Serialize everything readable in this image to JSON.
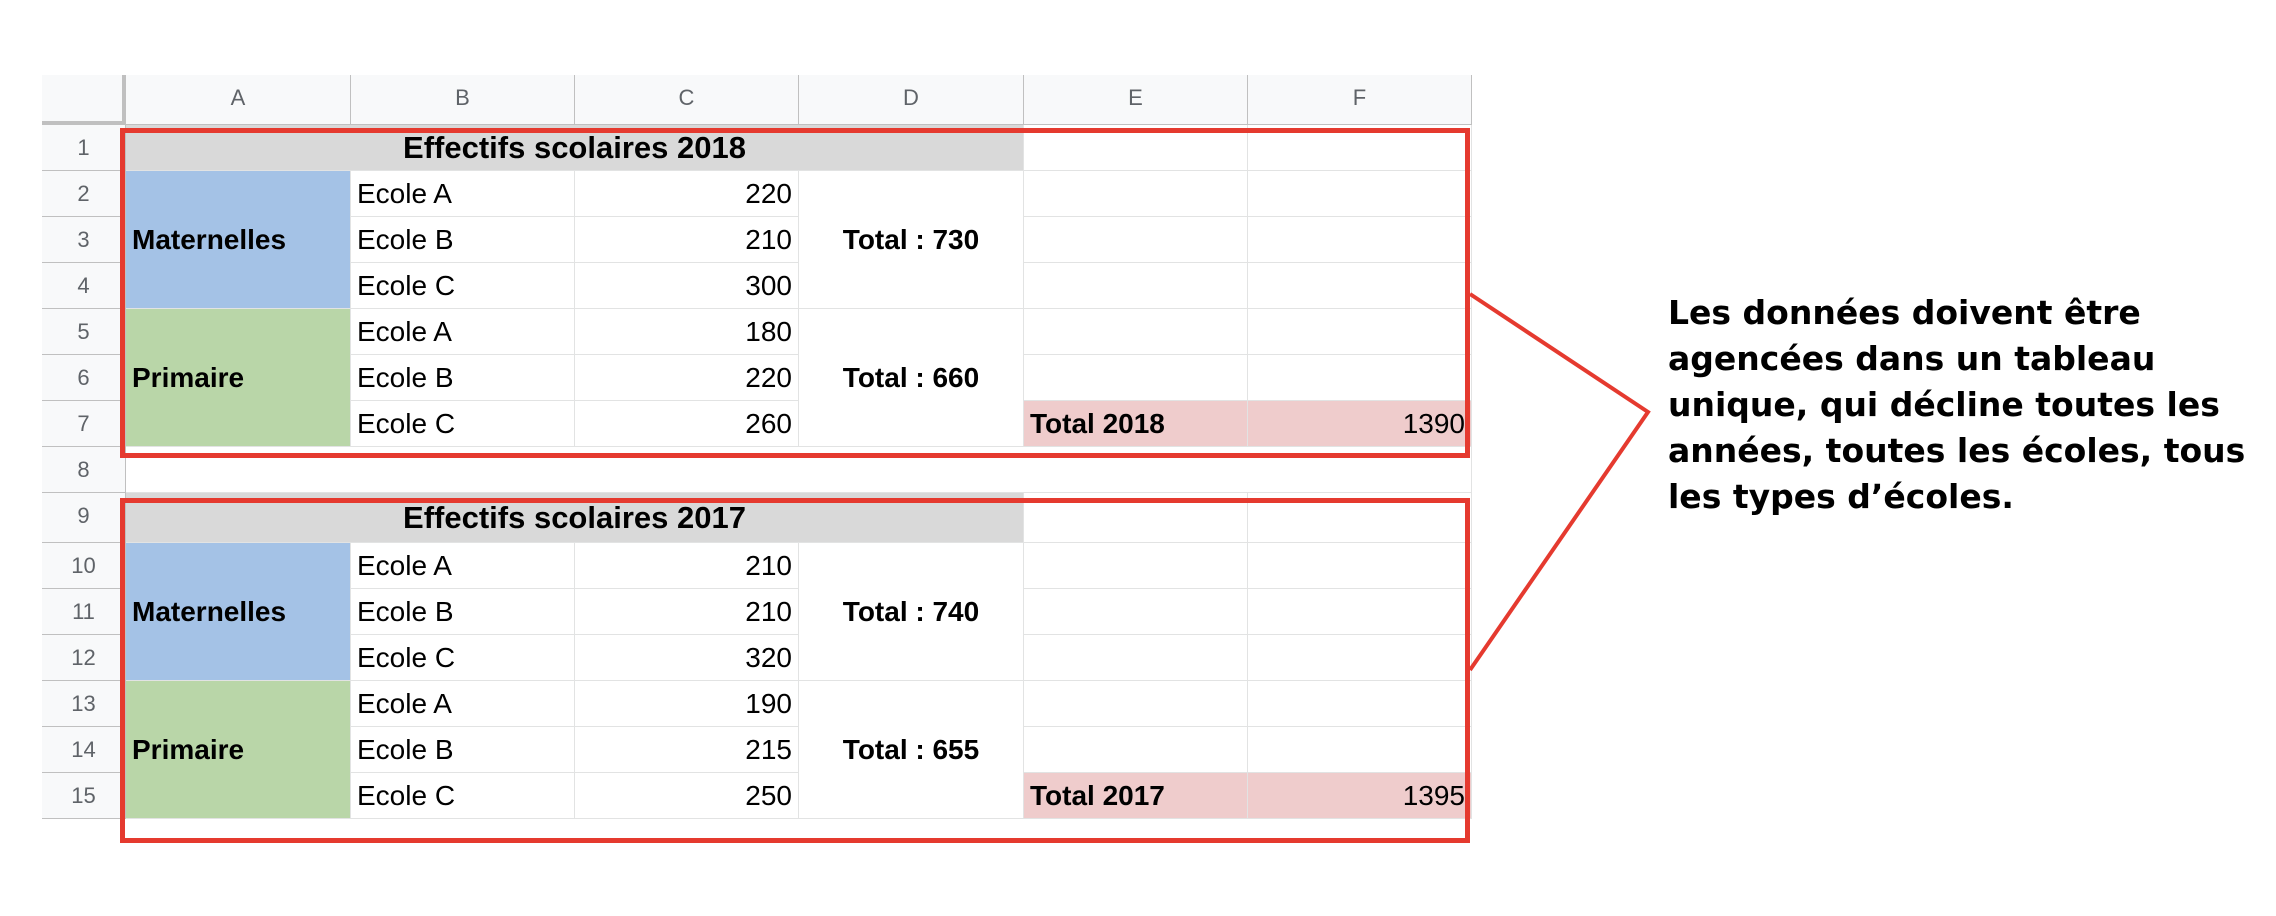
{
  "columns": [
    "A",
    "B",
    "C",
    "D",
    "E",
    "F"
  ],
  "rows": [
    "1",
    "2",
    "3",
    "4",
    "5",
    "6",
    "7",
    "8",
    "9",
    "10",
    "11",
    "12",
    "13",
    "14",
    "15"
  ],
  "table_2018": {
    "title": "Effectifs scolaires 2018",
    "maternelles_label": "Maternelles",
    "primaire_label": "Primaire",
    "maternelles": [
      {
        "school": "Ecole A",
        "value": "220"
      },
      {
        "school": "Ecole B",
        "value": "210"
      },
      {
        "school": "Ecole C",
        "value": "300"
      }
    ],
    "primaire": [
      {
        "school": "Ecole A",
        "value": "180"
      },
      {
        "school": "Ecole B",
        "value": "220"
      },
      {
        "school": "Ecole C",
        "value": "260"
      }
    ],
    "maternelles_total": "Total : 730",
    "primaire_total": "Total : 660",
    "year_total_label": "Total 2018",
    "year_total_value": "1390"
  },
  "table_2017": {
    "title": "Effectifs scolaires 2017",
    "maternelles_label": "Maternelles",
    "primaire_label": "Primaire",
    "maternelles": [
      {
        "school": "Ecole A",
        "value": "210"
      },
      {
        "school": "Ecole B",
        "value": "210"
      },
      {
        "school": "Ecole C",
        "value": "320"
      }
    ],
    "primaire": [
      {
        "school": "Ecole A",
        "value": "190"
      },
      {
        "school": "Ecole B",
        "value": "215"
      },
      {
        "school": "Ecole C",
        "value": "250"
      }
    ],
    "maternelles_total": "Total : 740",
    "primaire_total": "Total : 655",
    "year_total_label": "Total 2017",
    "year_total_value": "1395"
  },
  "annotation": "Les données doivent être agencées dans un tableau unique, qui décline toutes les années, toutes les écoles, tous les types d’écoles.",
  "colors": {
    "highlight_border": "#e53a2f",
    "maternelles_fill": "#a4c2e6",
    "primaire_fill": "#b9d6a8",
    "title_fill": "#d9d9d9",
    "year_total_fill": "#efcccc"
  }
}
